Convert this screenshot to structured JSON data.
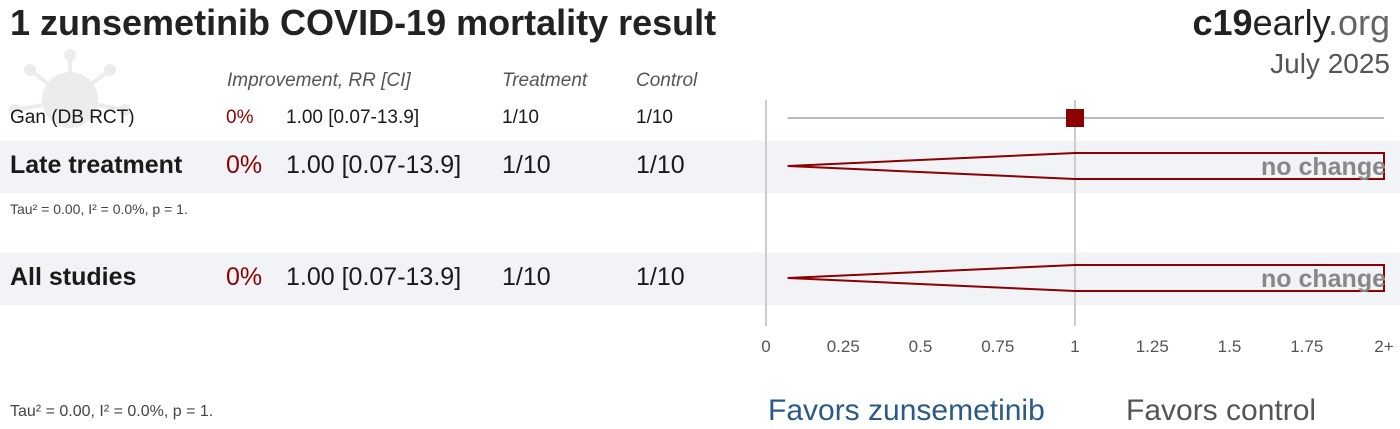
{
  "header": {
    "title": "1 zunsemetinib COVID-19 mortality result",
    "brand_bold": "c19",
    "brand_mid": "early",
    "brand_tld": ".org",
    "date": "July 2025"
  },
  "columns": {
    "improvement": "Improvement, RR [CI]",
    "treatment": "Treatment",
    "control": "Control"
  },
  "rows": [
    {
      "label": "Gan (DB RCT)",
      "improvement": "0%",
      "rr_ci": "1.00 [0.07-13.9]",
      "treatment": "1/10",
      "control": "1/10"
    },
    {
      "label": "Late treatment",
      "improvement": "0%",
      "rr_ci": "1.00 [0.07-13.9]",
      "treatment": "1/10",
      "control": "1/10",
      "stat": "Tau² = 0.00, I² = 0.0%, p = 1.",
      "effect_text": "no change"
    },
    {
      "label": "All studies",
      "improvement": "0%",
      "rr_ci": "1.00 [0.07-13.9]",
      "treatment": "1/10",
      "control": "1/10",
      "effect_text": "no change"
    }
  ],
  "footer": {
    "stat": "Tau² = 0.00, I² = 0.0%, p = 1.",
    "favors_left": "Favors zunsemetinib",
    "favors_right": "Favors control"
  },
  "chart_data": {
    "type": "forest",
    "xlim": [
      0,
      2
    ],
    "x_ticks": [
      "0",
      "0.25",
      "0.5",
      "0.75",
      "1",
      "1.25",
      "1.5",
      "1.75",
      "2+"
    ],
    "tick_values": [
      0,
      0.25,
      0.5,
      0.75,
      1,
      1.25,
      1.5,
      1.75,
      2
    ],
    "null_line": 1,
    "colors": {
      "study": "#8b0000",
      "pooled": "#8b0000",
      "ci_line": "#bbbbbb",
      "axis": "#cccccc"
    },
    "studies": [
      {
        "name": "Gan (DB RCT)",
        "rr": 1.0,
        "ci_low": 0.07,
        "ci_high": 13.9
      }
    ],
    "pooled": [
      {
        "name": "Late treatment",
        "rr": 1.0,
        "ci_low": 0.07,
        "ci_high": 13.9
      },
      {
        "name": "All studies",
        "rr": 1.0,
        "ci_low": 0.07,
        "ci_high": 13.9
      }
    ]
  }
}
